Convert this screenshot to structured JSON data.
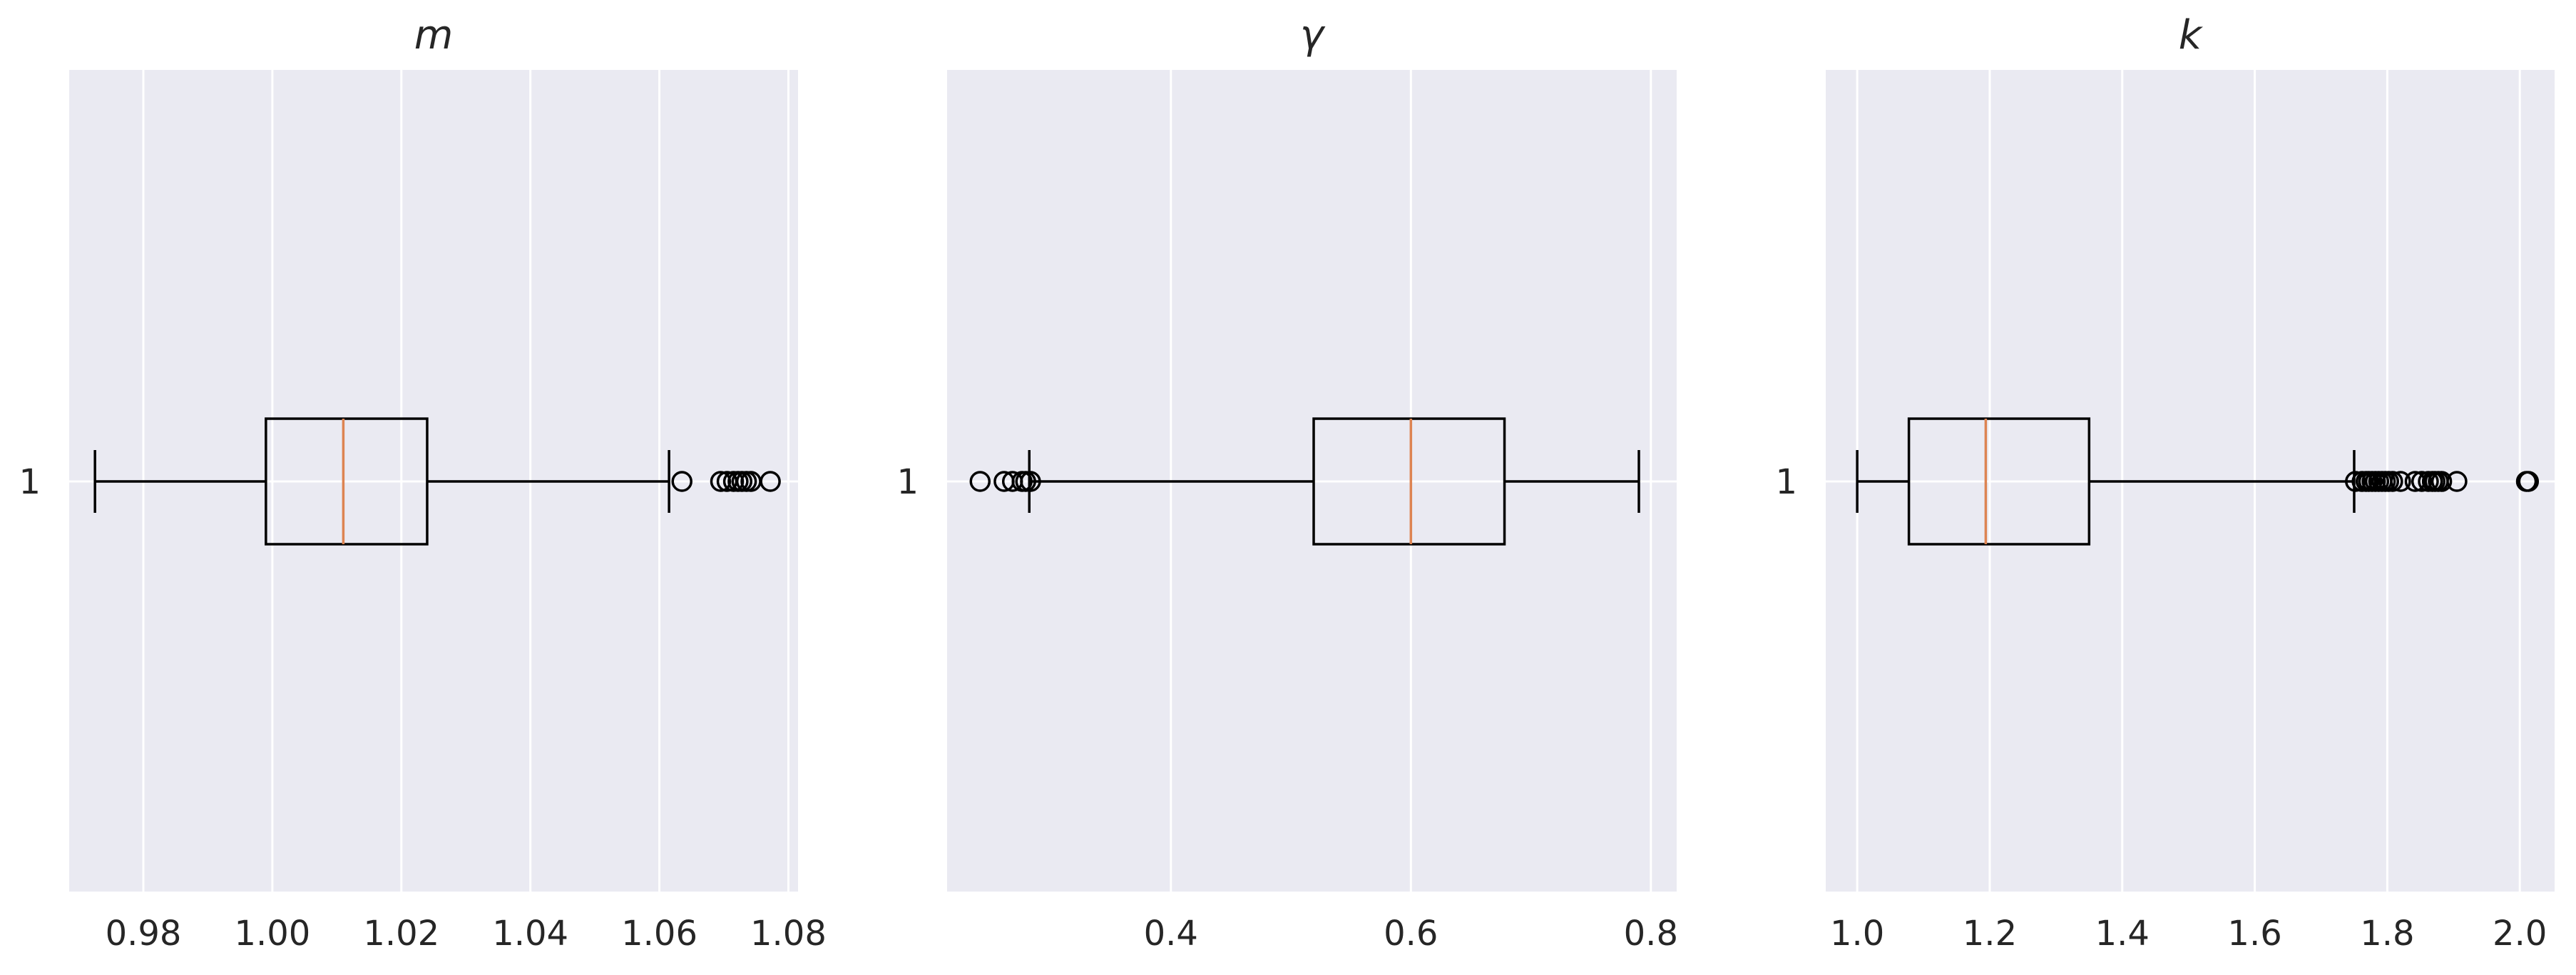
{
  "chart_data": [
    {
      "type": "boxplot",
      "title": "m",
      "ytick_labels": [
        "1"
      ],
      "xticks": [
        0.98,
        1.0,
        1.02,
        1.04,
        1.06,
        1.08
      ],
      "xtick_labels": [
        "0.98",
        "1.00",
        "1.02",
        "1.04",
        "1.06",
        "1.08"
      ],
      "xlim": [
        0.9685,
        1.0815
      ],
      "grid": true,
      "box": {
        "whisker_low": 0.9725,
        "q1": 0.999,
        "median": 1.011,
        "q3": 1.024,
        "whisker_high": 1.0615
      },
      "fliers": [
        1.0635,
        1.0695,
        1.0705,
        1.0715,
        1.0722,
        1.0728,
        1.0735,
        1.0742,
        1.0772
      ]
    },
    {
      "type": "boxplot",
      "title": "γ",
      "ytick_labels": [
        "1"
      ],
      "xticks": [
        0.4,
        0.6,
        0.8
      ],
      "xtick_labels": [
        "0.4",
        "0.6",
        "0.8"
      ],
      "xlim": [
        0.2135,
        0.8215
      ],
      "grid": true,
      "box": {
        "whisker_low": 0.282,
        "q1": 0.519,
        "median": 0.6,
        "q3": 0.678,
        "whisker_high": 0.79
      },
      "fliers": [
        0.241,
        0.261,
        0.268,
        0.276,
        0.279,
        0.283
      ]
    },
    {
      "type": "boxplot",
      "title": "k",
      "ytick_labels": [
        "1"
      ],
      "xticks": [
        1.0,
        1.2,
        1.4,
        1.6,
        1.8,
        2.0
      ],
      "xtick_labels": [
        "1.0",
        "1.2",
        "1.4",
        "1.6",
        "1.8",
        "2.0"
      ],
      "xlim": [
        0.9525,
        2.0525
      ],
      "grid": true,
      "box": {
        "whisker_low": 1.0,
        "q1": 1.078,
        "median": 1.194,
        "q3": 1.35,
        "whisker_high": 1.75
      },
      "fliers": [
        1.752,
        1.762,
        1.768,
        1.772,
        1.777,
        1.782,
        1.787,
        1.792,
        1.797,
        1.802,
        1.808,
        1.82,
        1.842,
        1.852,
        1.862,
        1.868,
        1.872,
        1.877,
        1.882,
        1.905,
        2.01,
        2.013
      ]
    }
  ]
}
